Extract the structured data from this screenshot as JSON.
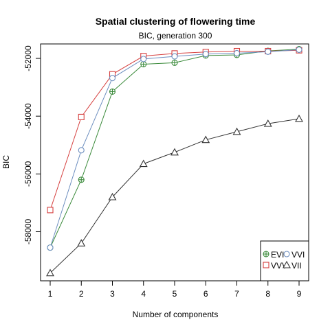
{
  "chart_data": {
    "type": "line",
    "title": "Spatial clustering of flowering time",
    "subtitle": "BIC, generation 300",
    "xlabel": "Number of components",
    "ylabel": "BIC",
    "x": [
      1,
      2,
      3,
      4,
      5,
      6,
      7,
      8,
      9
    ],
    "xlim": [
      1,
      9
    ],
    "ylim": [
      -59700,
      -51500
    ],
    "y_ticks": [
      -58000,
      -56000,
      -54000,
      -52000
    ],
    "grid": false,
    "legend_position": "bottom-right",
    "series": [
      {
        "name": "EVI",
        "color": "#3a8a3a",
        "marker": "circle-plus",
        "values": [
          -58550,
          -56200,
          -53150,
          -52200,
          -52150,
          -51900,
          -51880,
          -51740,
          -51680
        ]
      },
      {
        "name": "VVV",
        "color": "#d6403f",
        "marker": "square",
        "values": [
          -57250,
          -54030,
          -52550,
          -51920,
          -51830,
          -51780,
          -51750,
          -51750,
          -51720
        ]
      },
      {
        "name": "VVI",
        "color": "#6c8ebf",
        "marker": "circle",
        "values": [
          -58550,
          -55180,
          -52680,
          -52020,
          -51930,
          -51850,
          -51820,
          -51770,
          -51700
        ]
      },
      {
        "name": "VII",
        "color": "#333333",
        "marker": "triangle",
        "values": [
          -59430,
          -58400,
          -56800,
          -55650,
          -55250,
          -54820,
          -54540,
          -54260,
          -54090
        ]
      }
    ]
  }
}
